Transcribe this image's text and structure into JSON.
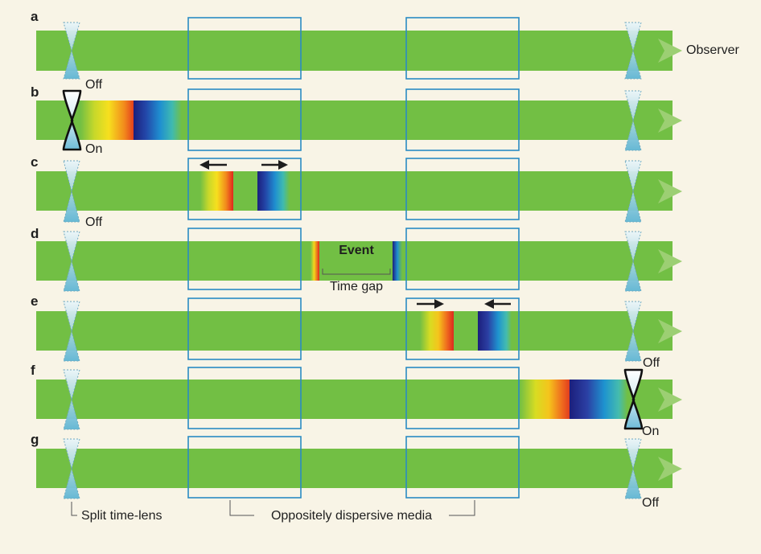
{
  "rows": [
    {
      "letter": "a"
    },
    {
      "letter": "b"
    },
    {
      "letter": "c"
    },
    {
      "letter": "d"
    },
    {
      "letter": "e"
    },
    {
      "letter": "f"
    },
    {
      "letter": "g"
    }
  ],
  "labels": {
    "observer": "Observer",
    "off": "Off",
    "on": "On",
    "event": "Event",
    "time_gap": "Time gap",
    "split_time_lens": "Split time-lens",
    "oppositely_dispersive_media": "Oppositely dispersive media"
  },
  "colors": {
    "background": "#f8f4e6",
    "beam": "#72bf44",
    "media_outline": "#2a8bc4",
    "lens_fill": "#8ecbe0",
    "arrow": "#1e1e1e"
  },
  "icons": {
    "lens": "hourglass-lens-icon",
    "arrow": "arrow-icon",
    "beam_tip": "triangle-arrow-icon"
  }
}
